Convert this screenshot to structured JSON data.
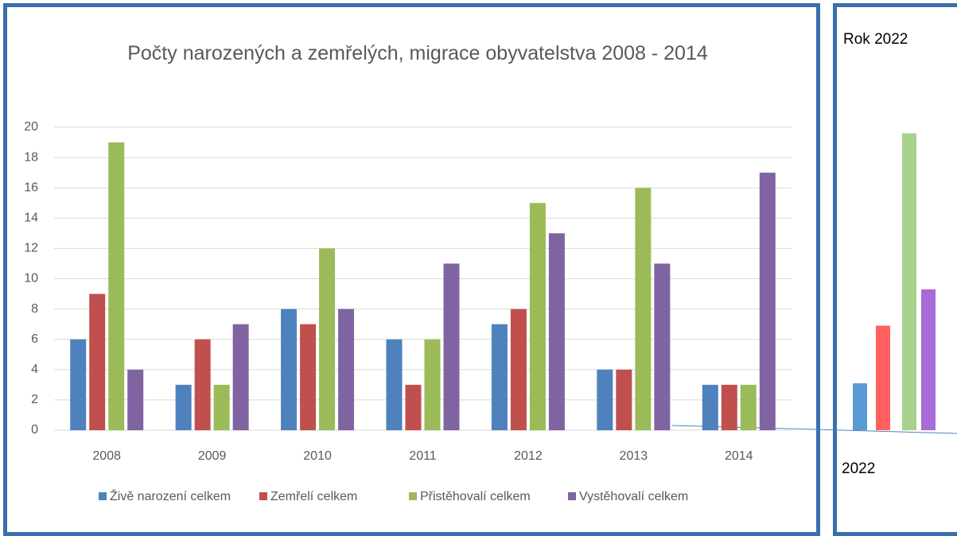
{
  "chart_data": [
    {
      "type": "bar",
      "title": "Počty narozených a zemřelých, migrace obyvatelstva 2008 - 2014",
      "categories": [
        "2008",
        "2009",
        "2010",
        "2011",
        "2012",
        "2013",
        "2014"
      ],
      "series": [
        {
          "name": "Živě narození celkem",
          "color": "#4f81bd",
          "values": [
            6,
            3,
            8,
            6,
            7,
            4,
            3
          ]
        },
        {
          "name": "Zemřelí celkem",
          "color": "#c0504d",
          "values": [
            9,
            6,
            7,
            3,
            8,
            4,
            3
          ]
        },
        {
          "name": "Přistěhovalí celkem",
          "color": "#9bbb59",
          "values": [
            19,
            3,
            12,
            6,
            15,
            16,
            3
          ]
        },
        {
          "name": "Vystěhovalí celkem",
          "color": "#8064a2",
          "values": [
            4,
            7,
            8,
            11,
            13,
            11,
            17
          ]
        }
      ],
      "ylim": [
        0,
        20
      ],
      "yticks": [
        0,
        2,
        4,
        6,
        8,
        10,
        12,
        14,
        16,
        18,
        20
      ],
      "grid": true,
      "legend": "bottom"
    },
    {
      "type": "bar",
      "title": "Rok 2022",
      "categories": [
        "2022"
      ],
      "series": [
        {
          "color": "#5b9bd5",
          "values": [
            3.1
          ]
        },
        {
          "color": "#ff5f5f",
          "values": [
            6.9
          ]
        },
        {
          "color": "#a9d18e",
          "values": [
            19.6
          ]
        },
        {
          "color": "#a96bd8",
          "values": [
            9.3
          ]
        }
      ]
    }
  ]
}
